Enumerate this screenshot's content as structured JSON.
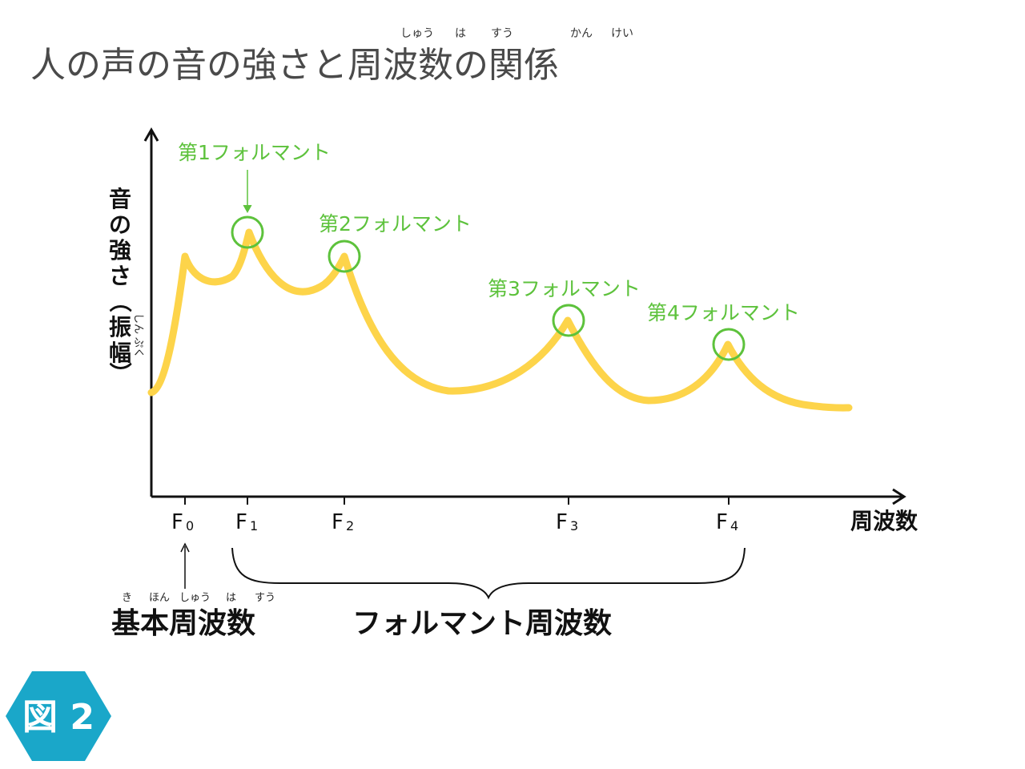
{
  "title": {
    "text": "人の声の音の強さと周波数の関係",
    "ruby": [
      "しゅう",
      "は",
      "すう",
      "かん",
      "けい"
    ]
  },
  "y_axis": {
    "chars": [
      "音",
      "の",
      "強",
      "さ",
      "（",
      "振",
      "幅",
      "）"
    ],
    "ruby": [
      "しん",
      "ぷく"
    ]
  },
  "x_axis": {
    "label": "周波数"
  },
  "ticks": [
    {
      "main": "F",
      "sub": "0"
    },
    {
      "main": "F",
      "sub": "1"
    },
    {
      "main": "F",
      "sub": "2"
    },
    {
      "main": "F",
      "sub": "3"
    },
    {
      "main": "F",
      "sub": "4"
    }
  ],
  "formants": [
    {
      "label": "第1フォルマント"
    },
    {
      "label": "第2フォルマント"
    },
    {
      "label": "第3フォルマント"
    },
    {
      "label": "第4フォルマント"
    }
  ],
  "fundamental": {
    "text": "基本周波数",
    "ruby": [
      "き",
      "ほん",
      "しゅう",
      "は",
      "すう"
    ]
  },
  "formant_freq": {
    "text": "フォルマント周波数"
  },
  "badge": {
    "text": "図 2",
    "color": "#1aa7c9"
  },
  "colors": {
    "curve": "#fdd44a",
    "formant": "#5dc23c",
    "axis": "#111111"
  }
}
